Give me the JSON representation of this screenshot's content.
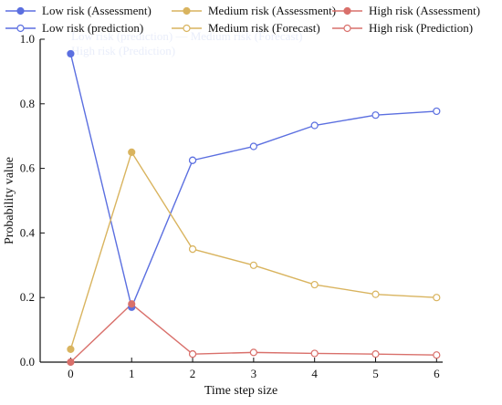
{
  "chart_data": {
    "type": "line",
    "xlabel": "Time step size",
    "ylabel": "Probability value",
    "xlim": [
      -0.5,
      6.1
    ],
    "ylim": [
      0,
      1.0
    ],
    "x_ticks": [
      "0",
      "1",
      "2",
      "3",
      "4",
      "5",
      "6"
    ],
    "y_ticks": [
      "0.0",
      "0.2",
      "0.4",
      "0.6",
      "0.8",
      "1.0"
    ],
    "grid": false,
    "legend_position": "top",
    "legend": [
      "Low risk (Assessment)",
      "Medium risk (Assessment)",
      "High risk (Assessment)",
      "Low risk (prediction)",
      "Medium risk (Forecast)",
      "High risk (Prediction)"
    ],
    "series": [
      {
        "name": "Low risk (Assessment)",
        "x": [
          0,
          1,
          2
        ],
        "values": [
          0.955,
          0.17,
          0.625
        ],
        "color": "#5b6fe0",
        "marker": "filled"
      },
      {
        "name": "Medium risk (Assessment)",
        "x": [
          0,
          1,
          2
        ],
        "values": [
          0.04,
          0.65,
          0.35
        ],
        "color": "#d9b45f",
        "marker": "filled"
      },
      {
        "name": "High risk (Assessment)",
        "x": [
          0,
          1,
          2
        ],
        "values": [
          0.0,
          0.18,
          0.025
        ],
        "color": "#d9706b",
        "marker": "filled"
      },
      {
        "name": "Low risk (prediction)",
        "x": [
          2,
          3,
          4,
          5,
          6
        ],
        "values": [
          0.625,
          0.668,
          0.733,
          0.765,
          0.777
        ],
        "color": "#5b6fe0",
        "marker": "open"
      },
      {
        "name": "Medium risk (Forecast)",
        "x": [
          2,
          3,
          4,
          5,
          6
        ],
        "values": [
          0.35,
          0.3,
          0.24,
          0.21,
          0.2
        ],
        "color": "#d9b45f",
        "marker": "open"
      },
      {
        "name": "High risk (Prediction)",
        "x": [
          2,
          3,
          4,
          5,
          6
        ],
        "values": [
          0.025,
          0.03,
          0.027,
          0.025,
          0.022
        ],
        "color": "#d9706b",
        "marker": "open"
      }
    ],
    "ghost_text": [
      "Low risk (prediction) ― Medium risk (Forecast)",
      "High risk (Prediction)"
    ]
  }
}
